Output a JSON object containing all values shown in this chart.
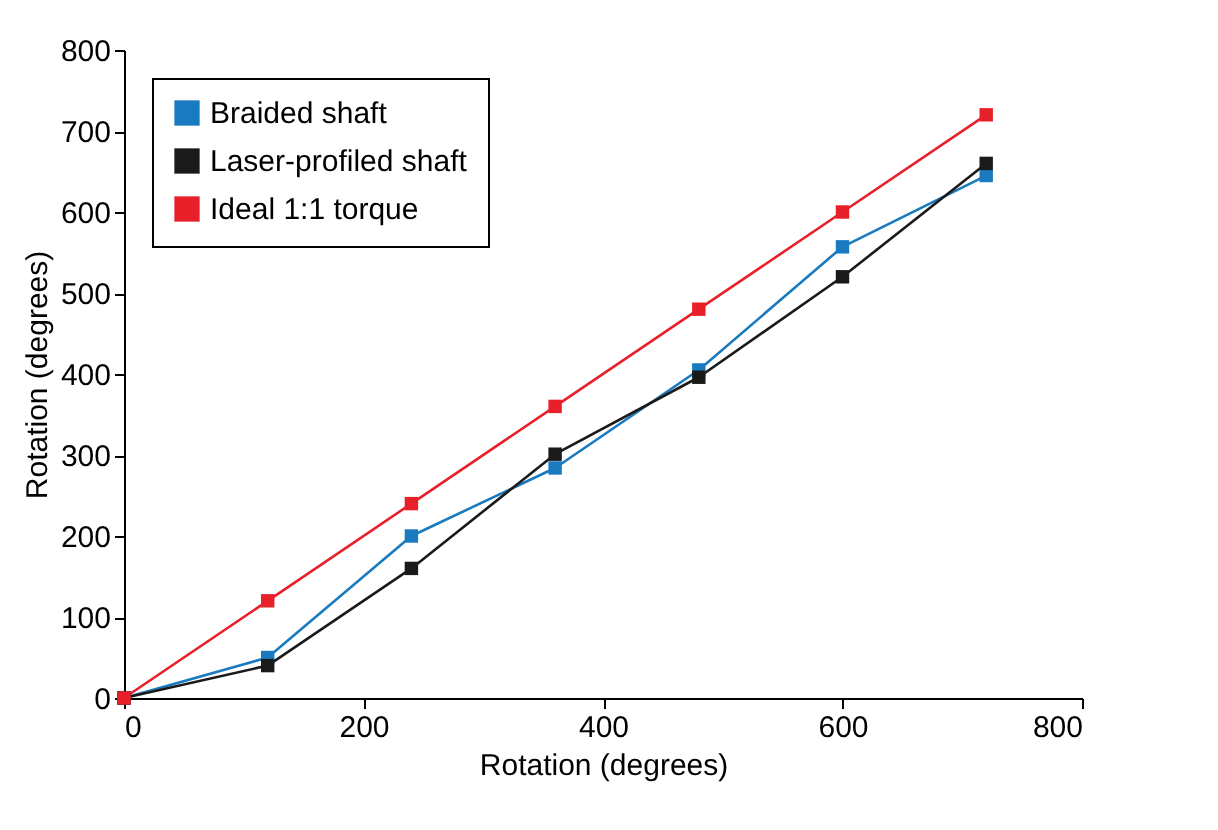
{
  "chart_data": {
    "type": "line",
    "xlabel": "Rotation (degrees)",
    "ylabel": "Rotation (degrees)",
    "xlim": [
      0,
      800
    ],
    "xticks": [
      0,
      200,
      400,
      600,
      800
    ],
    "ylim": [
      0,
      800
    ],
    "yticks": [
      0,
      100,
      200,
      300,
      400,
      500,
      600,
      700,
      800
    ],
    "x": [
      0,
      120,
      240,
      360,
      480,
      600,
      720
    ],
    "series": [
      {
        "name": "Braided shaft",
        "color": "#1a7abf",
        "values": [
          0,
          50,
          200,
          284,
          405,
          557,
          645
        ]
      },
      {
        "name": "Laser-profiled shaft",
        "color": "#1a1a1a",
        "values": [
          0,
          40,
          160,
          301,
          396,
          520,
          660
        ]
      },
      {
        "name": "Ideal 1:1 torque",
        "color": "#e8202a",
        "values": [
          0,
          120,
          240,
          360,
          480,
          600,
          720
        ]
      }
    ],
    "marker": "square",
    "line_style": "solid",
    "grid": false,
    "legend": "top left"
  }
}
